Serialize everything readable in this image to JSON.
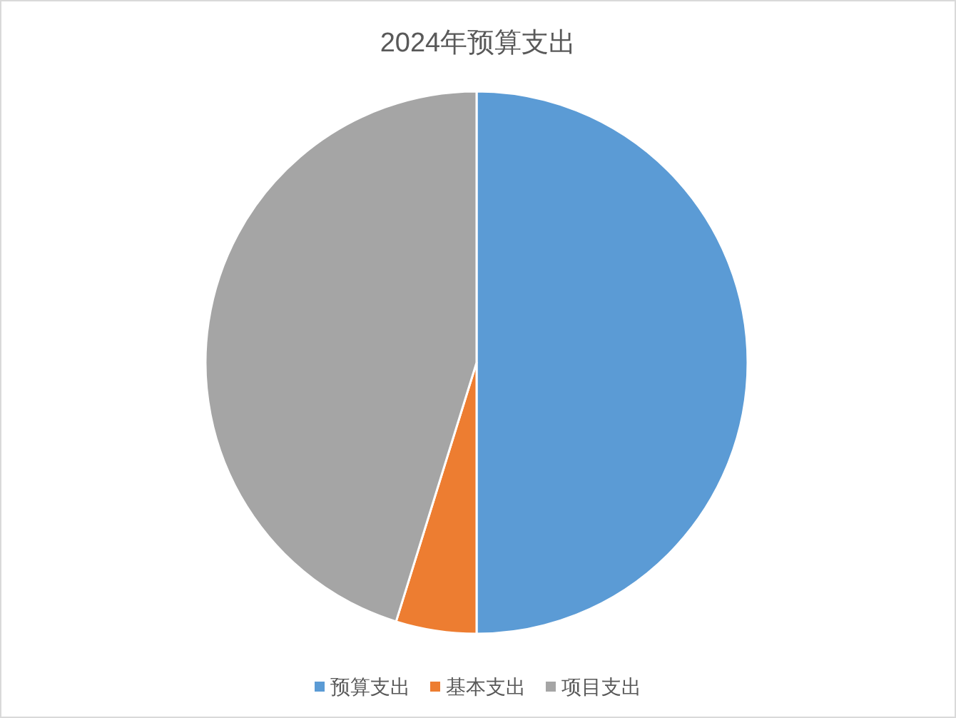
{
  "chart_data": {
    "type": "pie",
    "title": "2024年预算支出",
    "categories": [
      "预算支出",
      "基本支出",
      "项目支出"
    ],
    "values": [
      50,
      4.8,
      45.2
    ],
    "colors": [
      "#5b9bd5",
      "#ed7d31",
      "#a5a5a5"
    ],
    "legend": "bottom"
  }
}
